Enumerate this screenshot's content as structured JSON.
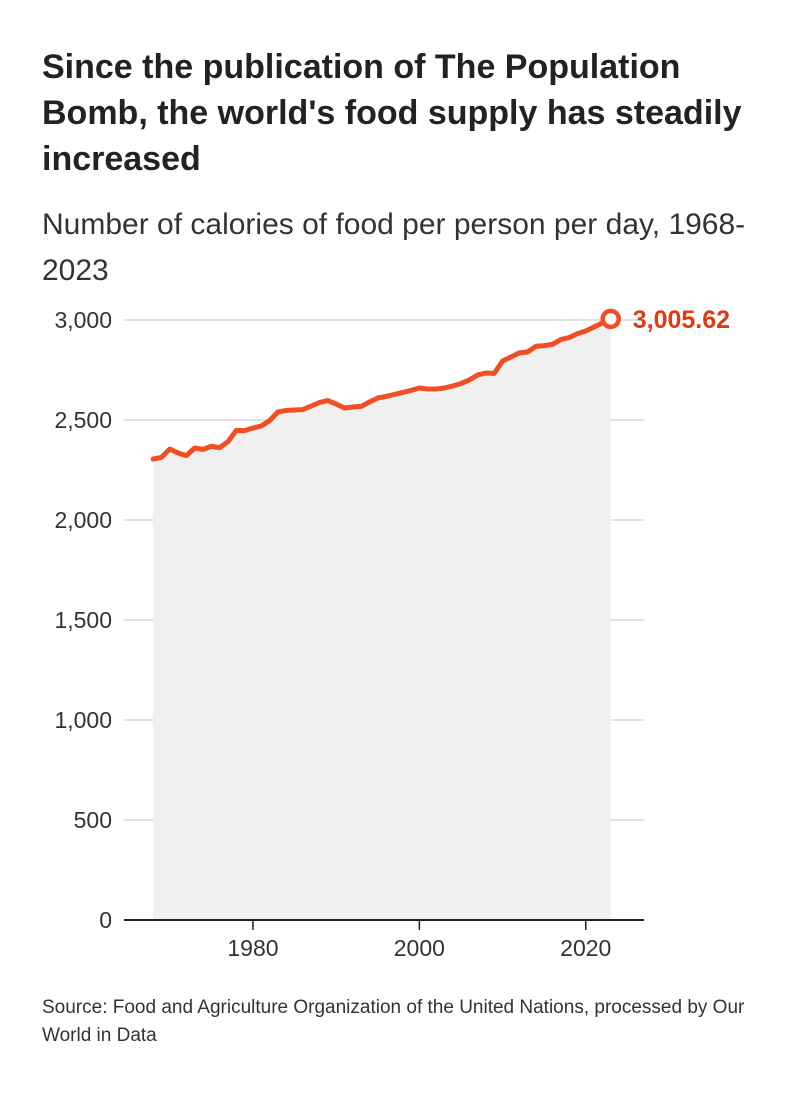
{
  "chart_data": {
    "type": "area",
    "title": "Since the publication of The Population Bomb, the world's food supply has steadily increased",
    "subtitle": "Number of calories of food per person per day, 1968-2023",
    "source": "Source: Food and Agriculture Organization of the United Nations, processed by Our World in Data",
    "x_ticks": [
      1980,
      2000,
      2020
    ],
    "y_ticks": [
      0,
      500,
      1000,
      1500,
      2000,
      2500,
      3000
    ],
    "y_tick_labels": [
      "0",
      "500",
      "1,000",
      "1,500",
      "2,000",
      "2,500",
      "3,000"
    ],
    "xlim": [
      1964.5,
      2027
    ],
    "ylim": [
      0,
      3000
    ],
    "grid": "horizontal",
    "end_label": "3,005.62",
    "colors": {
      "line": "#f04e23",
      "area": "#f0f0f0",
      "grid": "#d9d9d9",
      "end_label": "#e03a10",
      "axis": "#222222"
    },
    "x": [
      1968,
      1969,
      1970,
      1971,
      1972,
      1973,
      1974,
      1975,
      1976,
      1977,
      1978,
      1979,
      1980,
      1981,
      1982,
      1983,
      1984,
      1985,
      1986,
      1987,
      1988,
      1989,
      1990,
      1991,
      1992,
      1993,
      1994,
      1995,
      1996,
      1997,
      1998,
      1999,
      2000,
      2001,
      2002,
      2003,
      2004,
      2005,
      2006,
      2007,
      2008,
      2009,
      2010,
      2011,
      2012,
      2013,
      2014,
      2015,
      2016,
      2017,
      2018,
      2019,
      2020,
      2021,
      2022,
      2023
    ],
    "values": [
      2305,
      2313,
      2355,
      2335,
      2322,
      2360,
      2353,
      2368,
      2362,
      2392,
      2448,
      2447,
      2460,
      2470,
      2497,
      2540,
      2548,
      2550,
      2552,
      2570,
      2588,
      2597,
      2580,
      2560,
      2565,
      2568,
      2590,
      2610,
      2618,
      2628,
      2638,
      2648,
      2660,
      2655,
      2655,
      2660,
      2670,
      2682,
      2700,
      2725,
      2735,
      2733,
      2795,
      2815,
      2835,
      2840,
      2868,
      2872,
      2878,
      2902,
      2912,
      2932,
      2945,
      2965,
      2985,
      3005.62
    ]
  }
}
